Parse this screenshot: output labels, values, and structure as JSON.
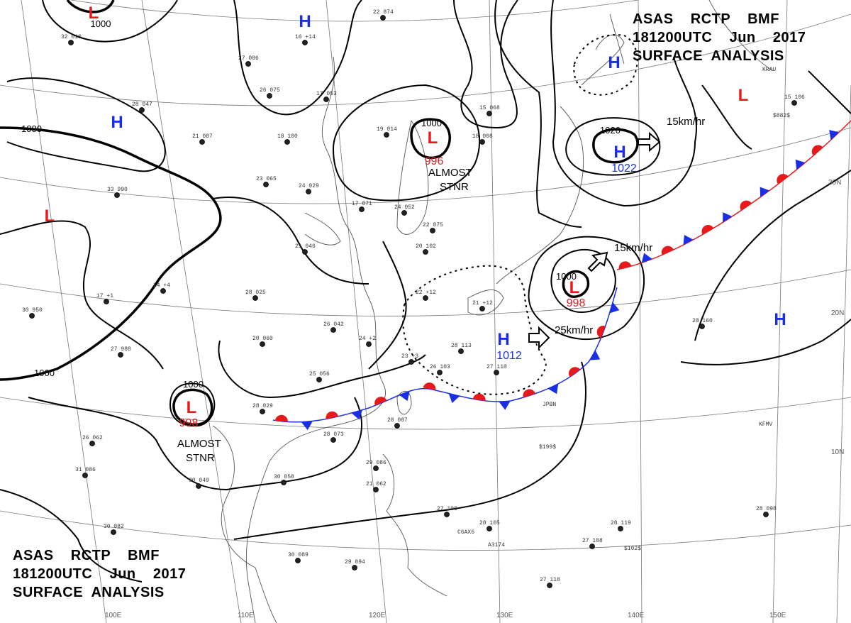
{
  "header": {
    "line1": "ASAS    RCTP    BMF",
    "line2": "181200UTC    Jun    2017",
    "line3": "SURFACE  ANALYSIS"
  },
  "pressure_centers": [
    {
      "type": "L",
      "value": "1000"
    },
    {
      "type": "H",
      "value": ""
    },
    {
      "type": "H",
      "value": ""
    },
    {
      "type": "L",
      "value": ""
    },
    {
      "type": "L",
      "value": "996"
    },
    {
      "type": "L",
      "value": ""
    },
    {
      "type": "H",
      "value": ""
    },
    {
      "type": "H",
      "value": "1022"
    },
    {
      "type": "H",
      "value": "1012"
    },
    {
      "type": "L",
      "value": "998"
    },
    {
      "type": "L",
      "value": "998"
    },
    {
      "type": "H",
      "value": ""
    }
  ],
  "isobar_labels": [
    "1000",
    "1000",
    "1000",
    "1000",
    "1000",
    "1020"
  ],
  "annotations": [
    "ALMOST",
    "STNR",
    "ALMOST",
    "STNR"
  ],
  "motion_labels": [
    "15km/hr",
    "15km/hr",
    "25km/hr"
  ],
  "grid_labels": {
    "longitudes": [
      "100E",
      "110E",
      "120E",
      "130E",
      "140E",
      "150E"
    ],
    "latitudes": [
      "30N",
      "20N",
      "10N"
    ]
  },
  "station_samples": [
    "32 010",
    "16 +14",
    "27 086",
    "26 075",
    "28 047",
    "21 087",
    "18 100",
    "23 065",
    "24 029",
    "19 014",
    "17 053",
    "22 874",
    "15 068",
    "18 008",
    "17 071",
    "24 052",
    "22 075",
    "20 102",
    "26 042",
    "20 060",
    "25 056",
    "28 029",
    "28 073",
    "28 087",
    "29 086",
    "21 062",
    "30 058",
    "30 049",
    "30 082",
    "30 089",
    "29 094",
    "27 100",
    "28 105",
    "28 119",
    "27 108",
    "27 118",
    "28 098",
    "28 160",
    "28 025",
    "21 046",
    "15 106",
    "14 +4",
    "27 988",
    "17 +1",
    "33 990",
    "30 950",
    "26 062",
    "31 086",
    "28 113",
    "26 103",
    "27 110",
    "24 +2",
    "23 +3",
    "22 +12",
    "21 +12"
  ],
  "station_tags": [
    "KFMV",
    "KRAU",
    "A3174",
    "C6AX6",
    "JPBN",
    "$199$",
    "$102$",
    "$882$"
  ]
}
